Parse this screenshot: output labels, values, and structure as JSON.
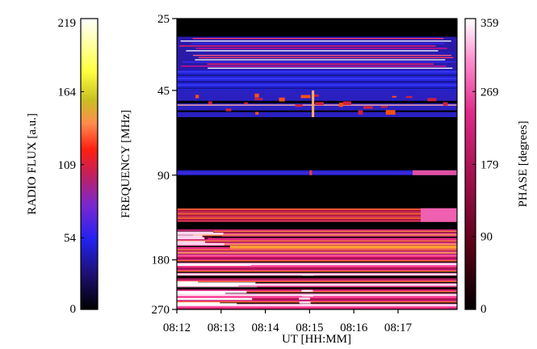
{
  "colors": {
    "background": "#ffffff",
    "frame": "#000000",
    "radio_flux_colormap": [
      "#000000",
      "#1c1070",
      "#2222f0",
      "#7a28d0",
      "#c02060",
      "#ff2010",
      "#ff8c50",
      "#c8c020",
      "#ffff40",
      "#ffffff"
    ],
    "phase_colormap": [
      "#000000",
      "#5a0018",
      "#a0104a",
      "#e02a8a",
      "#ff90d0",
      "#ffffff"
    ]
  },
  "chart_data": [
    {
      "type": "heatmap",
      "name": "dynamic-spectrum",
      "title": "",
      "xlabel": "UT [HH:MM]",
      "ylabel": "FREQUENCY [MHz]",
      "x_ticks": [
        "08:12",
        "08:13",
        "08:14",
        "08:15",
        "08:16",
        "08:17"
      ],
      "x_range_minutes_utc": [
        "08:12",
        "08:18:20"
      ],
      "y_ticks": [
        25,
        45,
        90,
        180,
        270
      ],
      "y_scale": "log",
      "ylim": [
        270,
        25
      ],
      "y_direction": "frequency increases downward",
      "quantities": [
        "radio flux (lower-frequency band, ~25-100 MHz)",
        "phase (higher-frequency band, ~110-270 MHz)"
      ],
      "bands_mhz": [
        {
          "from": 25,
          "to": 29,
          "level": "black"
        },
        {
          "from": 29,
          "to": 38,
          "level": "bright white/red/blue lines"
        },
        {
          "from": 38,
          "to": 45,
          "level": "blue"
        },
        {
          "from": 45,
          "to": 56,
          "level": "blue with red/orange bursts"
        },
        {
          "from": 56,
          "to": 86,
          "level": "black"
        },
        {
          "from": 86,
          "to": 90,
          "level": "blue line with red spike at 08:15"
        },
        {
          "from": 90,
          "to": 118,
          "level": "black"
        },
        {
          "from": 118,
          "to": 132,
          "level": "red/orange phase band"
        },
        {
          "from": 140,
          "to": 172,
          "level": "magenta/orange phase lines"
        },
        {
          "from": 172,
          "to": 270,
          "level": "dense magenta/pink phase stripes, white in early minutes"
        }
      ],
      "grid": false
    },
    {
      "type": "colorbar",
      "name": "radio-flux-colorbar",
      "label": "RADIO FLUX [a.u.]",
      "ticks": [
        0,
        54,
        109,
        164,
        219
      ],
      "range": [
        0,
        219
      ],
      "colormap": "black-blue-purple-red-orange-yellow-white",
      "label_position": "left"
    },
    {
      "type": "colorbar",
      "name": "phase-colorbar",
      "label": "PHASE [degrees]",
      "ticks": [
        0,
        90,
        179,
        269,
        359
      ],
      "range": [
        0,
        359
      ],
      "colormap": "black-crimson-magenta-pink-white",
      "label_position": "right"
    }
  ]
}
